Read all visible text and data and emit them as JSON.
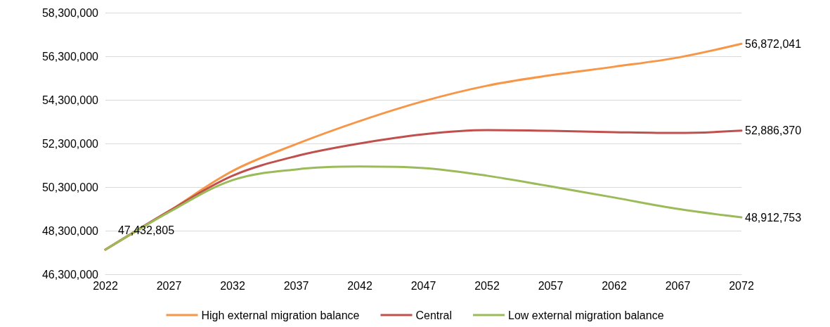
{
  "chart_data": {
    "type": "line",
    "x": [
      2022,
      2027,
      2032,
      2037,
      2042,
      2047,
      2052,
      2057,
      2062,
      2067,
      2072
    ],
    "xlim": [
      2022,
      2072
    ],
    "xticks": [
      2022,
      2027,
      2032,
      2037,
      2042,
      2047,
      2052,
      2057,
      2062,
      2067,
      2072
    ],
    "ylim": [
      46300000,
      58300000
    ],
    "yticks": [
      {
        "value": 46300000,
        "label": "46,300,000"
      },
      {
        "value": 48300000,
        "label": "48,300,000"
      },
      {
        "value": 50300000,
        "label": "50,300,000"
      },
      {
        "value": 52300000,
        "label": "52,300,000"
      },
      {
        "value": 54300000,
        "label": "54,300,000"
      },
      {
        "value": 56300000,
        "label": "56,300,000"
      },
      {
        "value": 58300000,
        "label": "58,300,000"
      }
    ],
    "grid": "y",
    "legend": "bottom",
    "marker": "none",
    "line_style": "solid",
    "series": [
      {
        "name": "High external migration balance",
        "color": "#f79646",
        "values": [
          47432805,
          49200000,
          51040000,
          52270000,
          53330000,
          54240000,
          54950000,
          55430000,
          55820000,
          56240000,
          56872041
        ],
        "value_labels": [
          "47,432,805",
          null,
          null,
          null,
          null,
          null,
          null,
          null,
          null,
          null,
          "56,872,041"
        ]
      },
      {
        "name": "Central",
        "color": "#c0504d",
        "values": [
          47430000,
          49200000,
          50820000,
          51720000,
          52300000,
          52720000,
          52910000,
          52880000,
          52820000,
          52780000,
          52886370
        ],
        "value_labels": [
          null,
          null,
          null,
          null,
          null,
          null,
          null,
          null,
          null,
          null,
          "52,886,370"
        ]
      },
      {
        "name": "Low external migration balance",
        "color": "#9bbb59",
        "values": [
          47430000,
          49150000,
          50620000,
          51110000,
          51240000,
          51170000,
          50820000,
          50330000,
          49820000,
          49300000,
          48912753
        ],
        "value_labels": [
          null,
          null,
          null,
          null,
          null,
          null,
          null,
          null,
          null,
          null,
          "48,912,753"
        ]
      }
    ]
  }
}
